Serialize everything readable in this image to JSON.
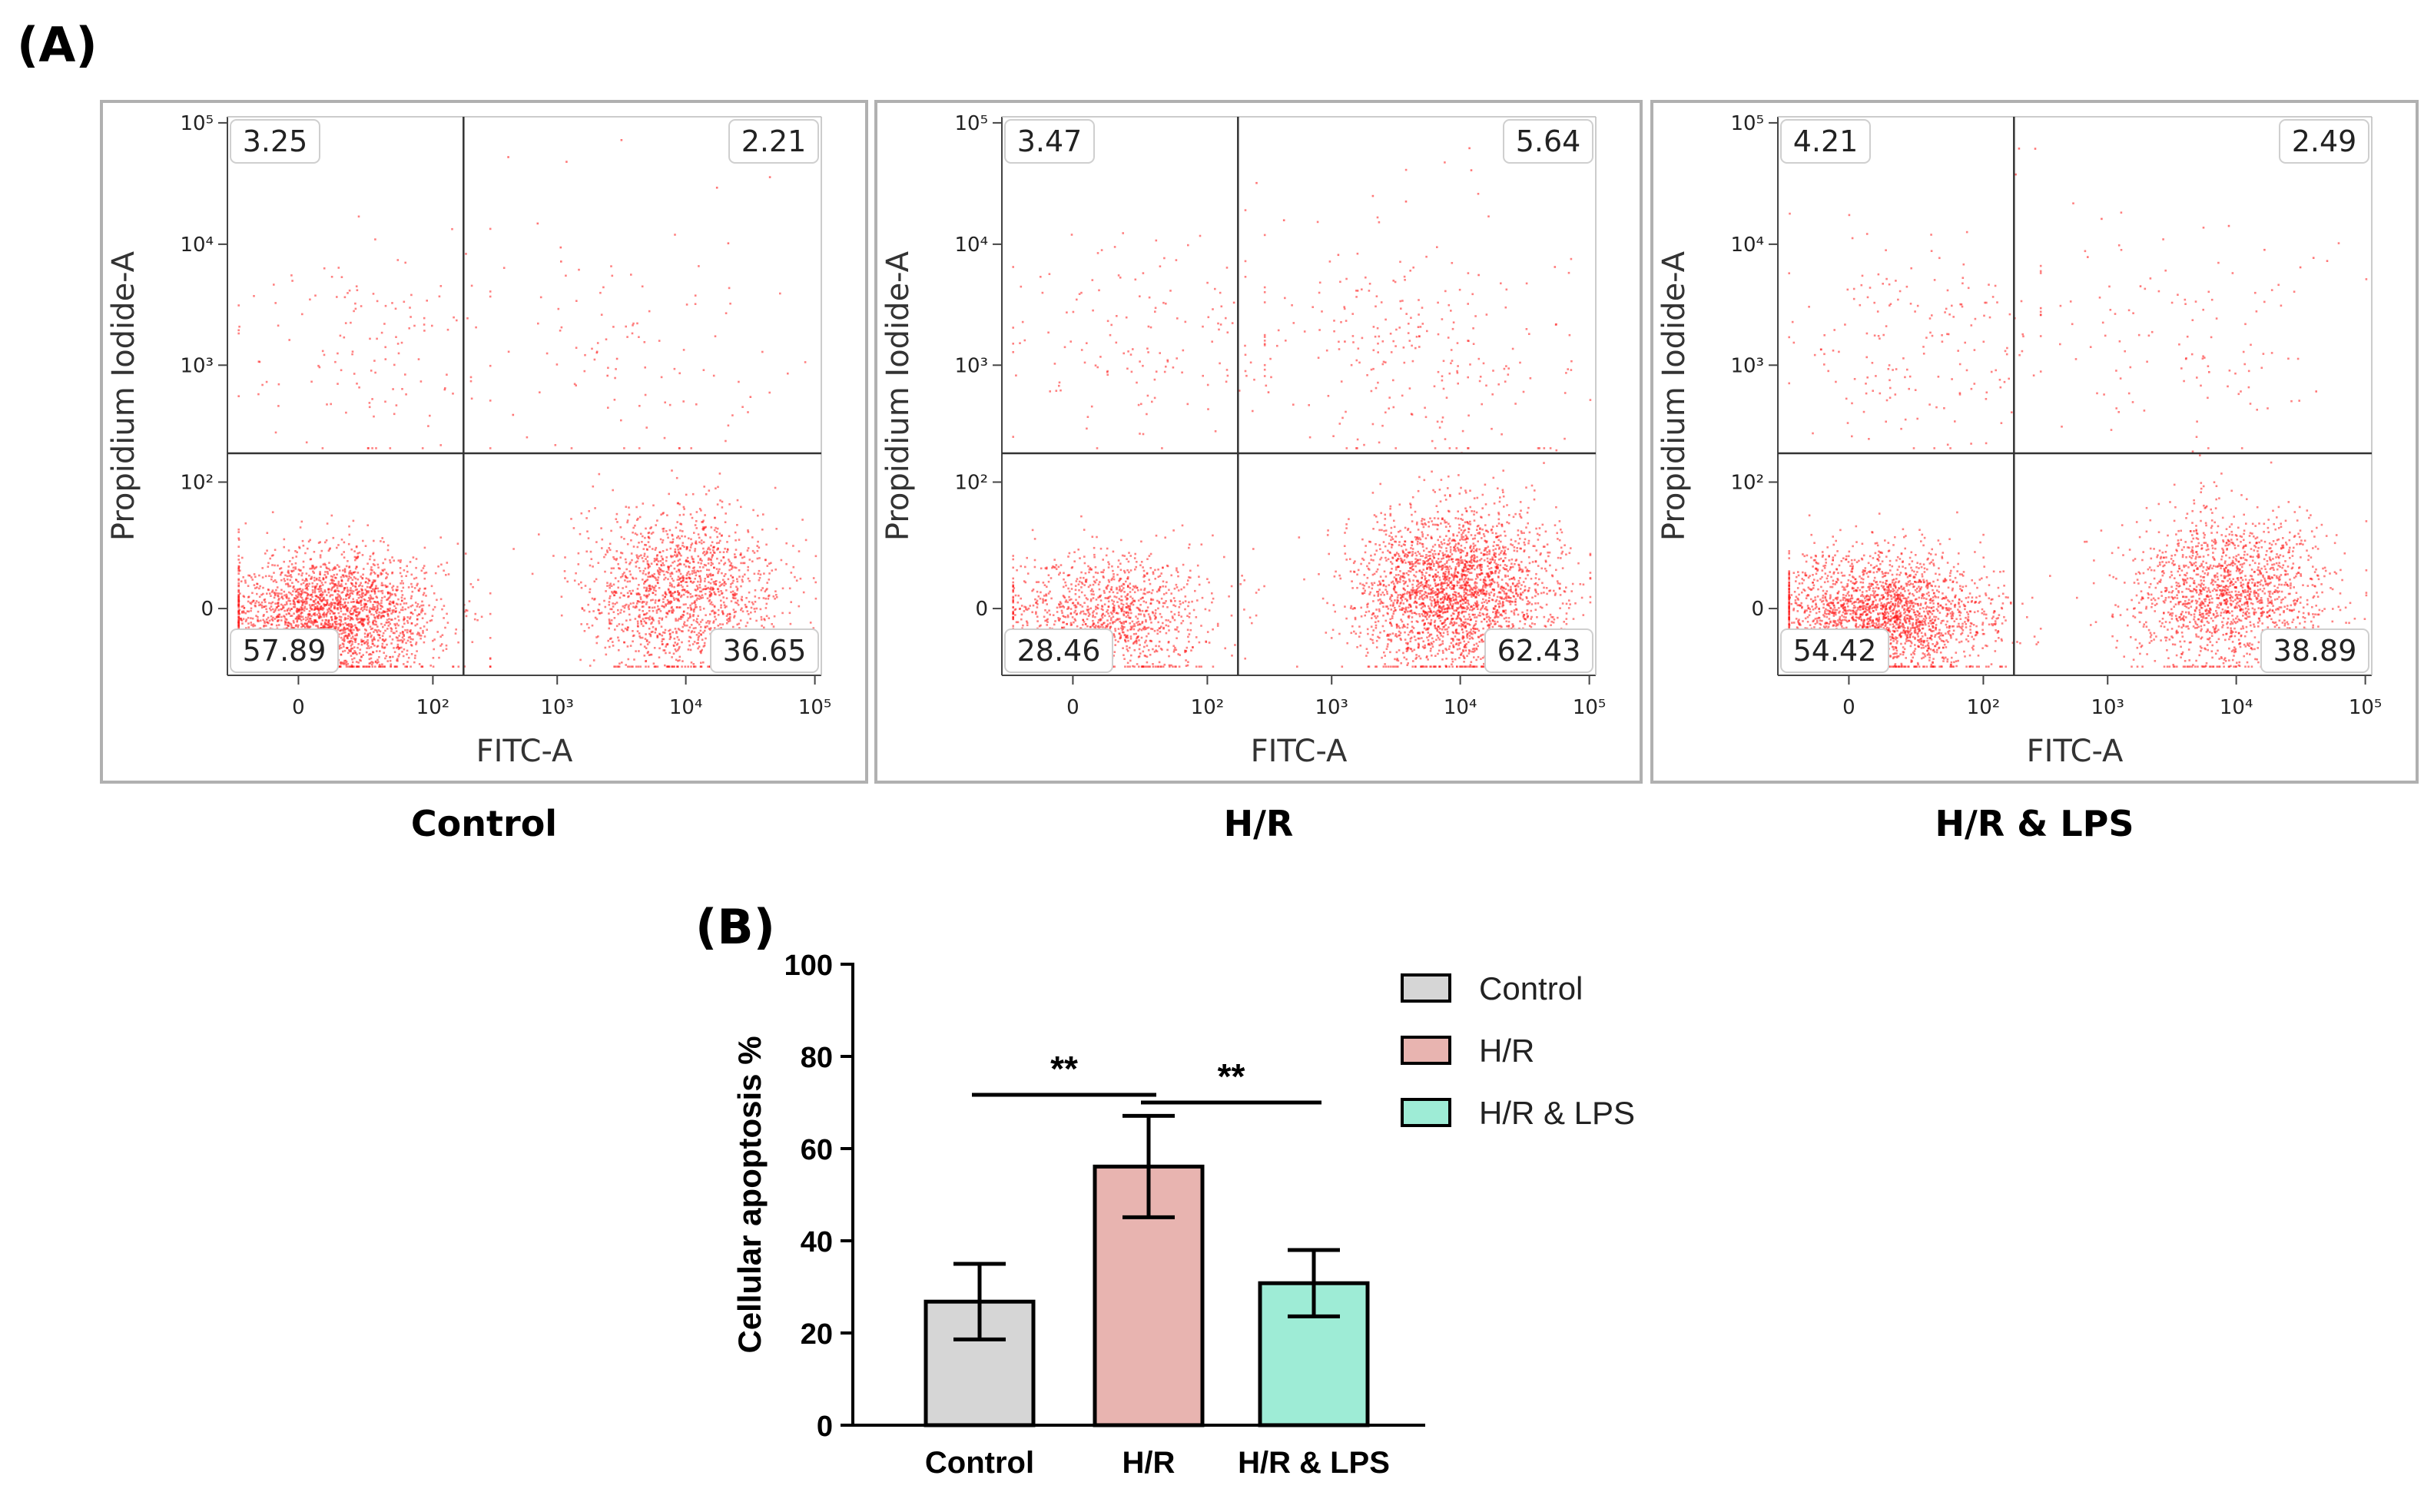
{
  "panel_a_label": "(A)",
  "panel_b_label": "(B)",
  "flow_panels": [
    {
      "caption": "Control",
      "quadrants": {
        "upper_left": "3.25",
        "upper_right": "2.21",
        "lower_left": "57.89",
        "lower_right": "36.65"
      },
      "xlabel": "FITC-A",
      "ylabel": "Propidium Iodide-A"
    },
    {
      "caption": "H/R",
      "quadrants": {
        "upper_left": "3.47",
        "upper_right": "5.64",
        "lower_left": "28.46",
        "lower_right": "62.43"
      },
      "xlabel": "FITC-A",
      "ylabel": "Propidium Iodide-A"
    },
    {
      "caption": "H/R & LPS",
      "quadrants": {
        "upper_left": "4.21",
        "upper_right": "2.49",
        "lower_left": "54.42",
        "lower_right": "38.89"
      },
      "xlabel": "FITC-A",
      "ylabel": "Propidium Iodide-A"
    }
  ],
  "flow_axis": {
    "x_ticks": [
      {
        "label": "0",
        "value": 0
      },
      {
        "label": "10²",
        "value": 100
      },
      {
        "label": "10³",
        "value": 1000
      },
      {
        "label": "10⁴",
        "value": 10000
      },
      {
        "label": "10⁵",
        "value": 100000
      }
    ],
    "y_ticks": [
      {
        "label": "0",
        "value": 0
      },
      {
        "label": "10²",
        "value": 100
      },
      {
        "label": "10³",
        "value": 1000
      },
      {
        "label": "10⁴",
        "value": 10000
      },
      {
        "label": "10⁵",
        "value": 100000
      }
    ]
  },
  "chart_data": {
    "type": "bar",
    "title": "",
    "categories": [
      "Control",
      "H/R",
      "H/R & LPS"
    ],
    "values": [
      26.8,
      56.1,
      30.8
    ],
    "error": [
      8.2,
      11.0,
      7.2
    ],
    "colors": [
      "#d6d6d6",
      "#e8b4b0",
      "#9eecd6"
    ],
    "xlabel": "",
    "ylabel": "Cellular apoptosis %",
    "ylim": [
      0,
      100
    ],
    "yticks": [
      0,
      20,
      40,
      60,
      80,
      100
    ],
    "legend": [
      "Control",
      "H/R",
      "H/R & LPS"
    ],
    "legend_position": "top-right",
    "significance": [
      {
        "from": "Control",
        "to": "H/R",
        "label": "**"
      },
      {
        "from": "H/R",
        "to": "H/R & LPS",
        "label": "**"
      }
    ]
  }
}
